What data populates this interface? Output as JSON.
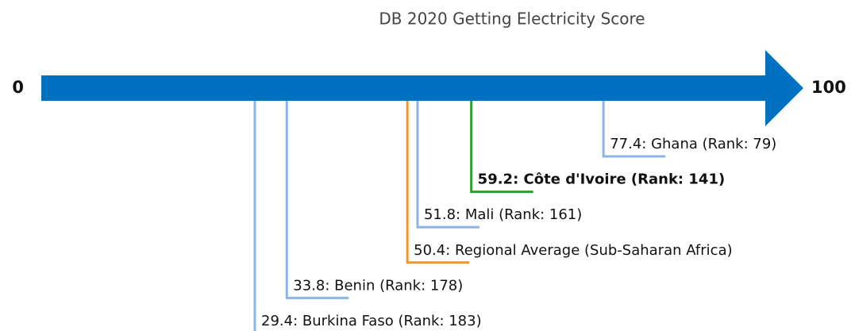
{
  "chart_data": {
    "type": "scale",
    "title": "DB 2020 Getting Electricity Score",
    "xlim": [
      0,
      100
    ],
    "xticks": [
      0,
      100
    ],
    "arrow_color": "#0070c0",
    "values": [
      77.4,
      59.2,
      51.8,
      50.4,
      33.8,
      29.4
    ],
    "value_labels": [
      "77.4: Ghana (Rank: 79)",
      "59.2: Côte d'Ivoire (Rank: 141)",
      "51.8: Mali (Rank: 161)",
      "50.4: Regional Average (Sub-Saharan Africa)",
      "33.8: Benin (Rank: 178)",
      "29.4: Burkina Faso (Rank: 183)"
    ],
    "colors": [
      "#8cb4e8",
      "#2ca02c",
      "#8cb4e8",
      "#f0952c",
      "#8cb4e8",
      "#8cb4e8"
    ],
    "bold": [
      false,
      true,
      false,
      false,
      false,
      false
    ]
  }
}
